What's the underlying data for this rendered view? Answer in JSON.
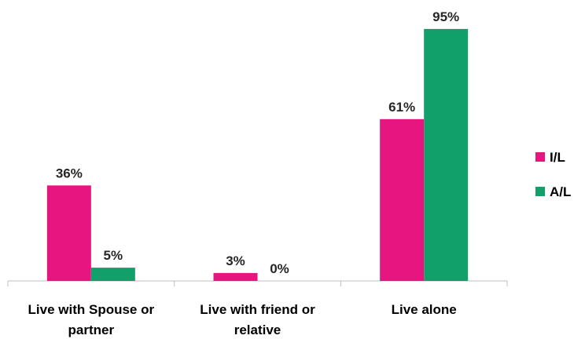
{
  "chart_data": {
    "type": "bar",
    "categories": [
      [
        "Live with Spouse or",
        "partner"
      ],
      [
        "Live with friend or",
        "relative"
      ],
      [
        "Live alone"
      ]
    ],
    "series": [
      {
        "name": "I/L",
        "color": "#E6157F",
        "values": [
          36,
          3,
          61
        ],
        "labels": [
          "36%",
          "3%",
          "61%"
        ]
      },
      {
        "name": "A/L",
        "color": "#12A06A",
        "values": [
          5,
          0,
          95
        ],
        "labels": [
          "5%",
          "0%",
          "95%"
        ]
      }
    ],
    "ylim": [
      0,
      100
    ],
    "grid": false,
    "legend_position": "right"
  }
}
